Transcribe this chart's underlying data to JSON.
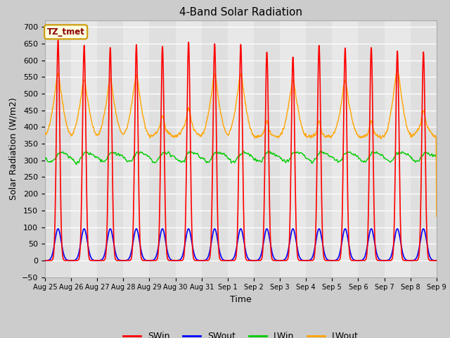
{
  "title": "4-Band Solar Radiation",
  "xlabel": "Time",
  "ylabel": "Solar Radiation (W/m2)",
  "annotation": "TZ_tmet",
  "ylim": [
    -50,
    720
  ],
  "bg_color": "#cccccc",
  "plot_bg_color": "#e8e8e8",
  "grid_color": "#ffffff",
  "legend_entries": [
    "SWin",
    "SWout",
    "LWin",
    "LWout"
  ],
  "legend_colors": [
    "#ff0000",
    "#0000ff",
    "#00cc00",
    "#ffa500"
  ],
  "line_colors": {
    "SWin": "#ff0000",
    "SWout": "#0000ff",
    "LWin": "#00cc00",
    "LWout": "#ffa500"
  },
  "n_days": 15,
  "tick_labels": [
    "Aug 25",
    "Aug 26",
    "Aug 27",
    "Aug 28",
    "Aug 29",
    "Aug 30",
    "Aug 31",
    "Sep 1",
    "Sep 2",
    "Sep 3",
    "Sep 4",
    "Sep 5",
    "Sep 6",
    "Sep 7",
    "Sep 8",
    "Sep 9"
  ],
  "swin_peaks": [
    660,
    645,
    638,
    647,
    642,
    655,
    650,
    648,
    625,
    610,
    645,
    637,
    638,
    628,
    625
  ],
  "lwout_base": 370,
  "lwout_day_peaks": [
    520,
    505,
    505,
    518,
    395,
    415,
    520,
    520,
    380,
    505,
    378,
    500,
    378,
    535,
    410
  ],
  "lwin_base": 300,
  "swout_max": 95
}
